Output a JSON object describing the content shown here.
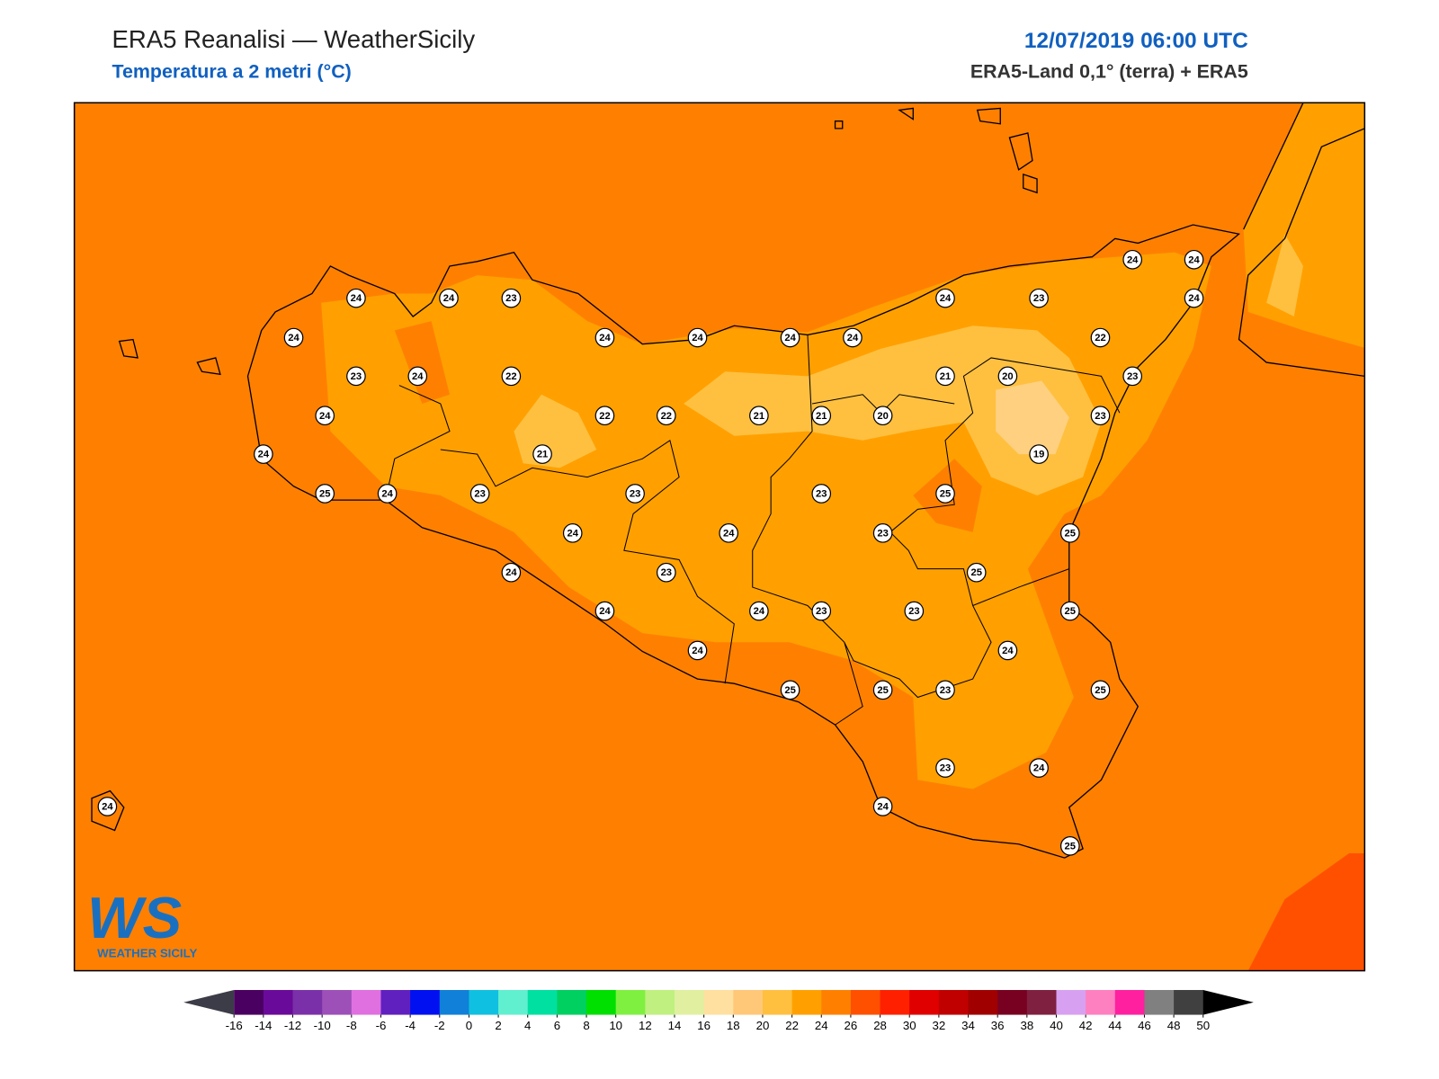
{
  "header": {
    "title": "ERA5 Reanalisi — WeatherSicily",
    "subtitle": "Temperatura a 2 metri (°C)",
    "datetime": "12/07/2019 06:00 UTC",
    "source": "ERA5-Land 0,1° (terra) + ERA5"
  },
  "stations": [
    24,
    24,
    23,
    24,
    24,
    24,
    24,
    24,
    24,
    23,
    24,
    24,
    24,
    22,
    23,
    24,
    22,
    21,
    20,
    23,
    24,
    22,
    22,
    21,
    21,
    20,
    23,
    24,
    21,
    19,
    25,
    24,
    23,
    23,
    23,
    25,
    24,
    24,
    23,
    25,
    24,
    23,
    25,
    24,
    24,
    23,
    23,
    25,
    24,
    24,
    25,
    25,
    23,
    25,
    23,
    24,
    24,
    24,
    25
  ],
  "colorbar": {
    "ticks": [
      -16,
      -14,
      -12,
      -10,
      -8,
      -6,
      -4,
      -2,
      0,
      2,
      4,
      6,
      8,
      10,
      12,
      14,
      16,
      18,
      20,
      22,
      24,
      26,
      28,
      30,
      32,
      34,
      36,
      38,
      40,
      42,
      44,
      46,
      48,
      50
    ],
    "colors": [
      "#4a0060",
      "#6a0a9a",
      "#7a30a8",
      "#9c50b8",
      "#e070e0",
      "#6020c0",
      "#0010f0",
      "#1080d8",
      "#10c0e0",
      "#60f0d0",
      "#00e0a0",
      "#00d060",
      "#00e000",
      "#80f040",
      "#c0f080",
      "#e0f0a0",
      "#ffe0a0",
      "#ffc878",
      "#ffc040",
      "#ffa000",
      "#ff8000",
      "#ff5000",
      "#ff2000",
      "#e00000",
      "#c00000",
      "#a00000",
      "#780020",
      "#802040",
      "#d8a0f0",
      "#ff80c0",
      "#ff20a0",
      "#808080",
      "#404040"
    ],
    "under_color": "#3c3c48",
    "over_color": "#000000"
  },
  "logo": {
    "mark": "WS",
    "name": "WEATHER SICILY"
  }
}
